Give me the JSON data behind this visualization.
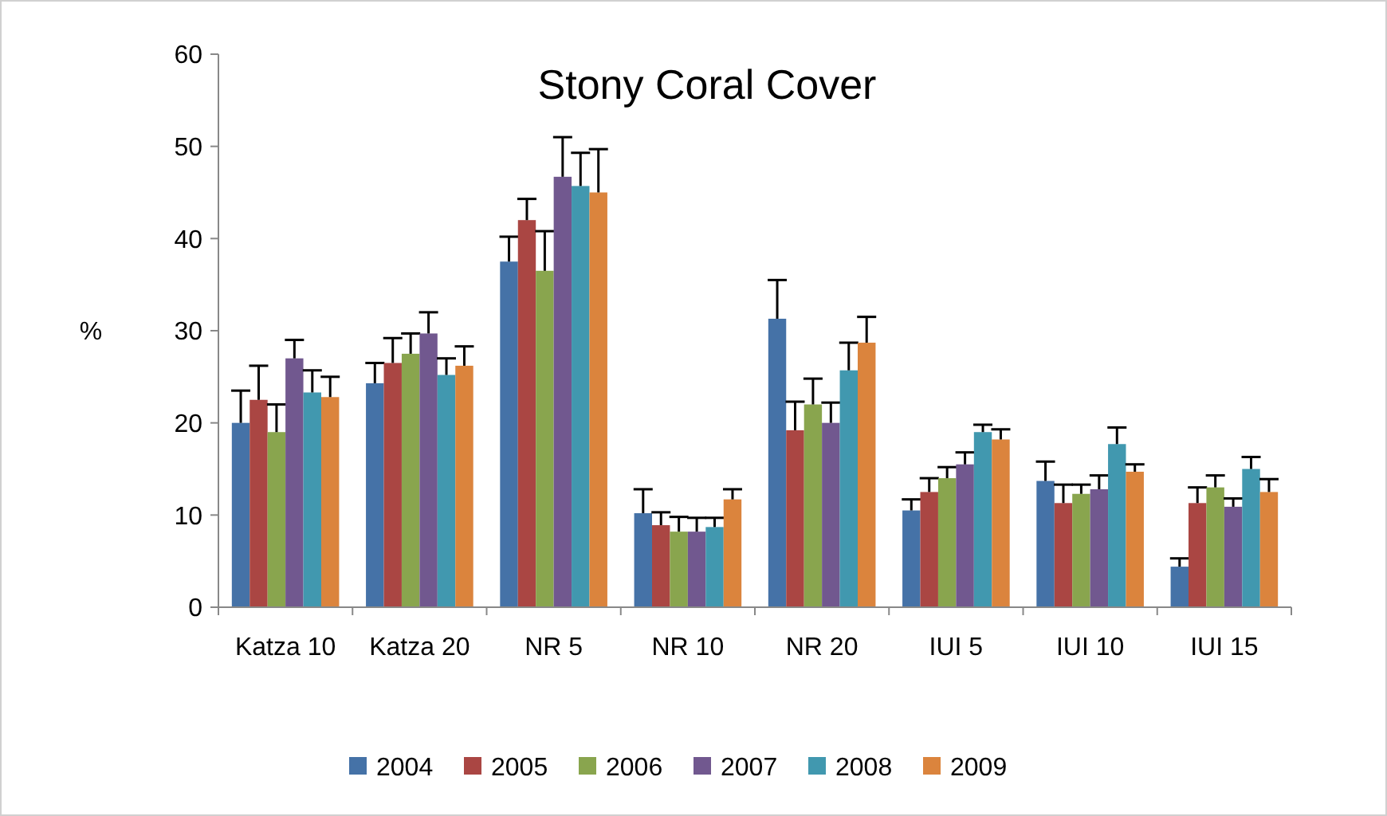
{
  "chart_data": {
    "type": "bar",
    "title": "Stony Coral Cover",
    "ylabel": "%",
    "categories": [
      "Katza 10",
      "Katza 20",
      "NR 5",
      "NR 10",
      "NR 20",
      "IUI 5",
      "IUI 10",
      "IUI 15"
    ],
    "series": [
      {
        "name": "2004",
        "color": "#4572a7",
        "values": [
          20.0,
          24.3,
          37.5,
          10.2,
          31.3,
          10.5,
          13.7,
          4.4
        ],
        "errors": [
          [
            20.0,
            23.5
          ],
          [
            24.3,
            26.5
          ],
          [
            37.5,
            40.2
          ],
          [
            10.2,
            12.8
          ],
          [
            31.3,
            35.5
          ],
          [
            10.5,
            11.7
          ],
          [
            13.7,
            15.8
          ],
          [
            4.4,
            5.3
          ]
        ]
      },
      {
        "name": "2005",
        "color": "#aa4643",
        "values": [
          22.5,
          26.5,
          42.0,
          8.9,
          19.2,
          12.5,
          11.3,
          11.3
        ],
        "errors": [
          [
            22.5,
            26.2
          ],
          [
            26.5,
            29.2
          ],
          [
            42.0,
            44.3
          ],
          [
            8.9,
            10.3
          ],
          [
            19.2,
            22.3
          ],
          [
            12.5,
            14.0
          ],
          [
            11.3,
            13.3
          ],
          [
            11.3,
            13.0
          ]
        ]
      },
      {
        "name": "2006",
        "color": "#89a54e",
        "values": [
          19.0,
          27.5,
          36.5,
          8.2,
          22.0,
          14.0,
          12.3,
          13.0
        ],
        "errors": [
          [
            19.0,
            22.0
          ],
          [
            27.5,
            29.7
          ],
          [
            36.5,
            40.8
          ],
          [
            8.2,
            9.8
          ],
          [
            22.0,
            24.8
          ],
          [
            14.0,
            15.2
          ],
          [
            12.3,
            13.3
          ],
          [
            13.0,
            14.3
          ]
        ]
      },
      {
        "name": "2007",
        "color": "#71588f",
        "values": [
          27.0,
          29.7,
          46.7,
          8.2,
          20.0,
          15.5,
          12.8,
          10.9
        ],
        "errors": [
          [
            27.0,
            29.0
          ],
          [
            29.7,
            32.0
          ],
          [
            46.7,
            51.0
          ],
          [
            8.2,
            9.7
          ],
          [
            20.0,
            22.2
          ],
          [
            15.5,
            16.8
          ],
          [
            12.8,
            14.3
          ],
          [
            10.9,
            11.8
          ]
        ]
      },
      {
        "name": "2008",
        "color": "#4198af",
        "values": [
          23.3,
          25.2,
          45.7,
          8.7,
          25.7,
          19.0,
          17.7,
          15.0
        ],
        "errors": [
          [
            23.3,
            25.7
          ],
          [
            25.2,
            27.0
          ],
          [
            45.7,
            49.3
          ],
          [
            8.7,
            9.7
          ],
          [
            25.7,
            28.7
          ],
          [
            19.0,
            19.8
          ],
          [
            17.7,
            19.5
          ],
          [
            15.0,
            16.3
          ]
        ]
      },
      {
        "name": "2009",
        "color": "#db843d",
        "values": [
          22.8,
          26.2,
          45.0,
          11.7,
          28.7,
          18.2,
          14.7,
          12.5
        ],
        "errors": [
          [
            22.8,
            25.0
          ],
          [
            26.2,
            28.3
          ],
          [
            45.0,
            49.7
          ],
          [
            11.7,
            12.8
          ],
          [
            28.7,
            31.5
          ],
          [
            18.2,
            19.3
          ],
          [
            14.7,
            15.5
          ],
          [
            12.5,
            13.9
          ]
        ]
      }
    ],
    "ylim": [
      0,
      60
    ],
    "yticks": [
      0,
      10,
      20,
      30,
      40,
      50,
      60
    ],
    "grid": false,
    "legend": "bottom"
  }
}
